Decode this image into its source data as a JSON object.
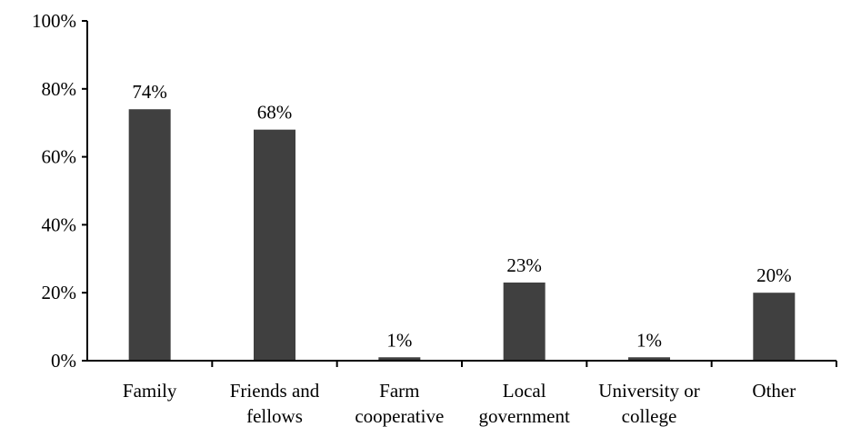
{
  "chart_data": {
    "type": "bar",
    "categories": [
      [
        "Family"
      ],
      [
        "Friends and",
        "fellows"
      ],
      [
        "Farm",
        "cooperative"
      ],
      [
        "Local",
        "government"
      ],
      [
        "University or",
        "college"
      ],
      [
        "Other"
      ]
    ],
    "values": [
      74,
      68,
      1,
      23,
      1,
      20
    ],
    "data_labels": [
      "74%",
      "68%",
      "1%",
      "23%",
      "1%",
      "20%"
    ],
    "ylim": [
      0,
      100
    ],
    "yticks": [
      0,
      20,
      40,
      60,
      80,
      100
    ],
    "ytick_labels": [
      "0%",
      "20%",
      "40%",
      "60%",
      "80%",
      "100%"
    ],
    "bar_color": "#404040",
    "grid": false,
    "legend": "none"
  }
}
